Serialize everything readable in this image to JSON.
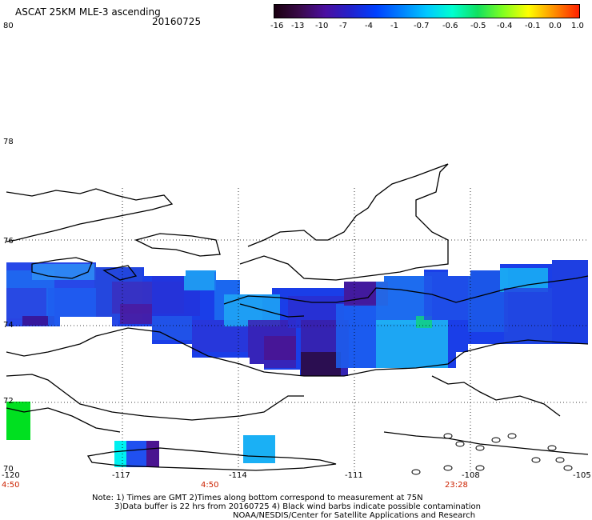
{
  "header": {
    "title": "ASCAT 25KM MLE-3 ascending",
    "date": "20160725"
  },
  "colorbar": {
    "labels": [
      "-16",
      "-13",
      "-10",
      "-7",
      "-4",
      "-1",
      "-0.7",
      "-0.6",
      "-0.5",
      "-0.4",
      "-0.1",
      "0.0",
      "1.0"
    ],
    "colors": [
      "#1a0010",
      "#3a0a4a",
      "#4b0fa0",
      "#2222cc",
      "#0040ff",
      "#0080ff",
      "#00c8ff",
      "#00ffd0",
      "#10e060",
      "#80ff20",
      "#ffff00",
      "#ff9000",
      "#ff2000"
    ]
  },
  "axes": {
    "lat_labels": [
      "80",
      "78",
      "76",
      "74",
      "72",
      "70"
    ],
    "lon_labels": [
      "-120",
      "-117",
      "-114",
      "-111",
      "-108",
      "-105"
    ],
    "time_labels": [
      "4:50",
      "4:50",
      "23:28"
    ]
  },
  "notes": {
    "line1": "Note: 1) Times are GMT 2)Times along bottom correspond to measurement at 75N",
    "line2": "3)Data buffer is 22 hrs from 20160725 4) Black wind barbs indicate possible contamination",
    "line3": "NOAA/NESDIS/Center for Satellite Applications and Research"
  },
  "colors": {
    "land_outline": "#000000",
    "grid": "#000000",
    "time_text": "#cc2200"
  }
}
